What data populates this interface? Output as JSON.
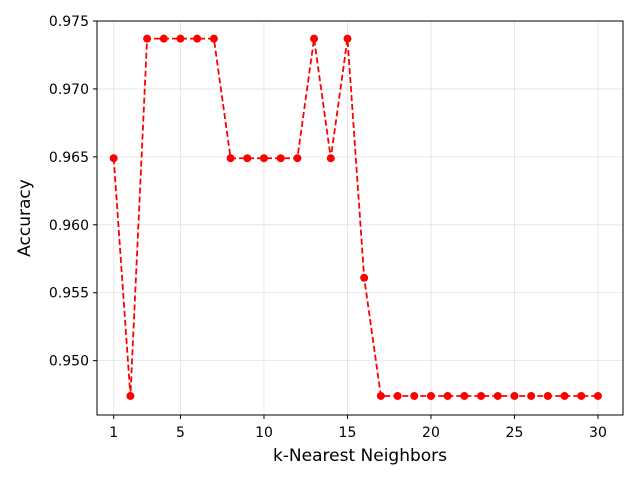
{
  "chart_data": {
    "type": "line",
    "title": "",
    "xlabel": "k-Nearest Neighbors",
    "ylabel": "Accuracy",
    "x": [
      1,
      2,
      3,
      4,
      5,
      6,
      7,
      8,
      9,
      10,
      11,
      12,
      13,
      14,
      15,
      16,
      17,
      18,
      19,
      20,
      21,
      22,
      23,
      24,
      25,
      26,
      27,
      28,
      29,
      30
    ],
    "series": [
      {
        "values": [
          0.9649,
          0.9474,
          0.9737,
          0.9737,
          0.9737,
          0.9737,
          0.9737,
          0.9649,
          0.9649,
          0.9649,
          0.9649,
          0.9649,
          0.9737,
          0.9649,
          0.9737,
          0.9561,
          0.9474,
          0.9474,
          0.9474,
          0.9474,
          0.9474,
          0.9474,
          0.9474,
          0.9474,
          0.9474,
          0.9474,
          0.9474,
          0.9474,
          0.9474,
          0.9474
        ],
        "color": "#ff0000",
        "line_style": "dashed",
        "marker": "circle"
      }
    ],
    "xlim": [
      0.0,
      31.5
    ],
    "ylim": [
      0.946,
      0.975
    ],
    "xticks": [
      1,
      5,
      10,
      15,
      20,
      25,
      30
    ],
    "yticks": [
      0.95,
      0.955,
      0.96,
      0.965,
      0.97,
      0.975
    ],
    "ytick_labels": [
      "0.950",
      "0.955",
      "0.960",
      "0.965",
      "0.970",
      "0.975"
    ],
    "xtick_labels": [
      "1",
      "5",
      "10",
      "15",
      "20",
      "25",
      "30"
    ],
    "grid": true
  }
}
